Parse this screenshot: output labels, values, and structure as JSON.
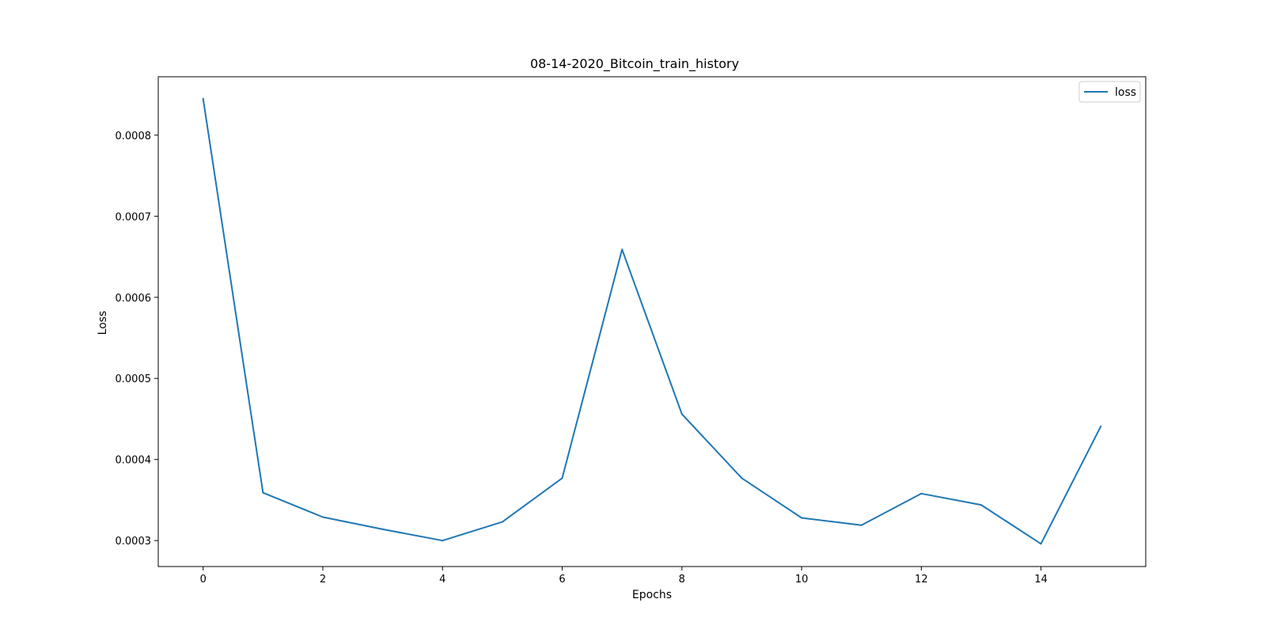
{
  "chart_data": {
    "type": "line",
    "title": "08-14-2020_Bitcoin_train_history",
    "xlabel": "Epochs",
    "ylabel": "Loss",
    "x": [
      0,
      1,
      2,
      3,
      4,
      5,
      6,
      7,
      8,
      9,
      10,
      11,
      12,
      13,
      14,
      15
    ],
    "series": [
      {
        "name": "loss",
        "color": "#1f77b4",
        "values": [
          0.000845,
          0.000359,
          0.000329,
          0.000314,
          0.0003,
          0.000323,
          0.000377,
          0.000659,
          0.000456,
          0.000377,
          0.000328,
          0.000319,
          0.000358,
          0.000344,
          0.000296,
          0.000441
        ]
      }
    ],
    "xlim": [
      -0.75,
      15.75
    ],
    "ylim": [
      0.000268,
      0.000872
    ],
    "xticks": [
      0,
      2,
      4,
      6,
      8,
      10,
      12,
      14
    ],
    "yticks": [
      0.0003,
      0.0004,
      0.0005,
      0.0006,
      0.0007,
      0.0008
    ],
    "xtick_labels": [
      "0",
      "2",
      "4",
      "6",
      "8",
      "10",
      "12",
      "14"
    ],
    "ytick_labels": [
      "0.0003",
      "0.0004",
      "0.0005",
      "0.0006",
      "0.0007",
      "0.0008"
    ],
    "grid": false,
    "legend_position": "top-right"
  }
}
